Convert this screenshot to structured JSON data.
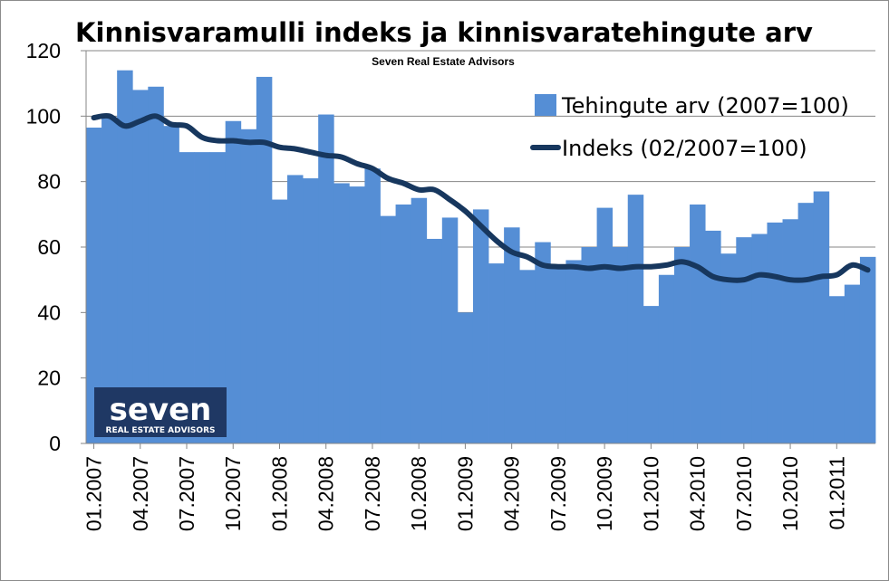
{
  "chart_data": {
    "type": "bar+line",
    "title": "Kinnisvaramulli indeks ja kinnisvaratehingute arv",
    "subtitle": "Seven Real Estate Advisors",
    "ylim": [
      0,
      120
    ],
    "y_ticks": [
      "0",
      "20",
      "40",
      "60",
      "80",
      "100",
      "120"
    ],
    "x_tick_labels": [
      "01.2007",
      "04.2007",
      "07.2007",
      "10.2007",
      "01.2008",
      "04.2008",
      "07.2008",
      "10.2008",
      "01.2009",
      "04.2009",
      "07.2009",
      "10.2009",
      "01.2010",
      "04.2010",
      "07.2010",
      "10.2010",
      "01.2011"
    ],
    "legend_position": "top-right",
    "grid": true,
    "series": [
      {
        "name": "Tehingute arv (2007=100)",
        "type": "bar",
        "color": "#558ed5",
        "values": [
          96.5,
          99.5,
          114,
          108,
          109,
          97,
          89,
          89,
          89,
          98.5,
          96,
          112,
          74.5,
          82,
          81,
          100.5,
          79.5,
          78.5,
          84,
          69.5,
          73,
          75,
          62.5,
          69,
          40,
          71.5,
          55,
          66,
          53,
          61.5,
          54,
          56,
          60,
          72,
          60,
          76,
          42,
          51.5,
          60,
          73,
          65,
          58,
          63,
          64,
          67.5,
          68.5,
          73.5,
          77,
          45,
          48.5,
          57
        ]
      },
      {
        "name": "Indeks (02/2007=100)",
        "type": "line",
        "color": "#17375e",
        "values": [
          99.5,
          100,
          97,
          98.5,
          100,
          97.5,
          97,
          93.5,
          92.5,
          92.5,
          92,
          92,
          90.5,
          90,
          89,
          88,
          87.5,
          85.5,
          84,
          81,
          79.5,
          77.5,
          77.5,
          74.5,
          71,
          66.5,
          62,
          58.5,
          57,
          54.5,
          54,
          54,
          53.5,
          54,
          53.5,
          54,
          54,
          54.5,
          55.5,
          54,
          51,
          50,
          50,
          51.5,
          51,
          50,
          50,
          51,
          51.5,
          54.5,
          53
        ]
      }
    ]
  },
  "logo": {
    "word": "seven",
    "tagline": "REAL ESTATE ADVISORS",
    "bg_color": "#1f3864"
  }
}
